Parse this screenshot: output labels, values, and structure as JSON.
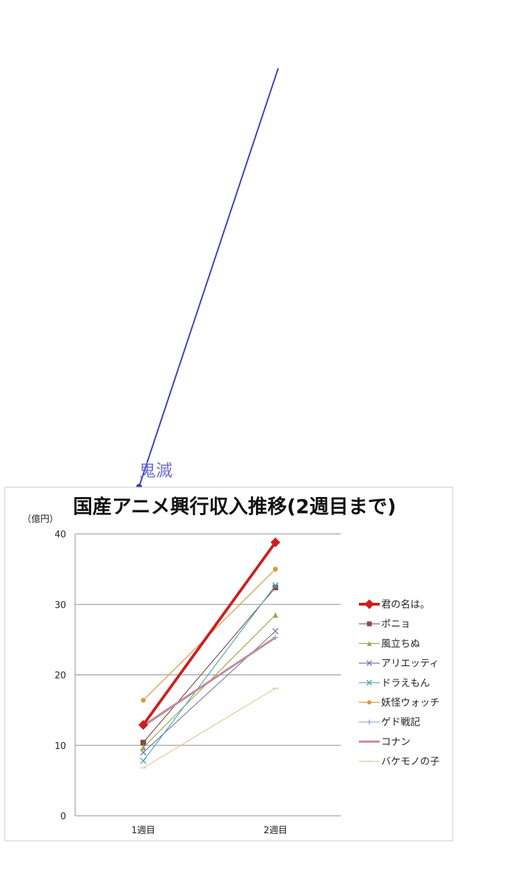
{
  "annotation": {
    "text": "鬼滅",
    "color": "#3a3ad0"
  },
  "chart_data": {
    "type": "line",
    "title": "国産アニメ興行収入推移(2週目まで)",
    "unit_label": "（億円）",
    "categories": [
      "1週目",
      "2週目"
    ],
    "ylim": [
      0,
      40
    ],
    "yticks": [
      0,
      10,
      20,
      30,
      40
    ],
    "grid": true,
    "legend_position": "right",
    "series": [
      {
        "name": "君の名は。",
        "values": [
          12.9,
          38.8
        ],
        "color": "#cc1f1f",
        "marker": "diamond",
        "bold": true
      },
      {
        "name": "ポニョ",
        "values": [
          10.4,
          32.4
        ],
        "color": "#8b4a4a",
        "marker": "square"
      },
      {
        "name": "風立ちぬ",
        "values": [
          9.7,
          28.5
        ],
        "color": "#9aa84a",
        "marker": "triangle"
      },
      {
        "name": "アリエッティ",
        "values": [
          9.0,
          26.2
        ],
        "color": "#7a7aa8",
        "marker": "x"
      },
      {
        "name": "ドラえもん",
        "values": [
          7.8,
          32.7
        ],
        "color": "#4aa8b8",
        "marker": "x"
      },
      {
        "name": "妖怪ウォッチ",
        "values": [
          16.4,
          35.0
        ],
        "color": "#d8983e",
        "marker": "circle"
      },
      {
        "name": "ゲド戦記",
        "values": [
          12.6,
          25.3
        ],
        "color": "#9aa8d0",
        "marker": "plus"
      },
      {
        "name": "コナン",
        "values": [
          12.8,
          25.3
        ],
        "color": "#c48a9a",
        "marker": "none",
        "thick": true
      },
      {
        "name": "バケモノの子",
        "values": [
          6.8,
          18.1
        ],
        "color": "#e0c898",
        "marker": "dash"
      }
    ]
  }
}
